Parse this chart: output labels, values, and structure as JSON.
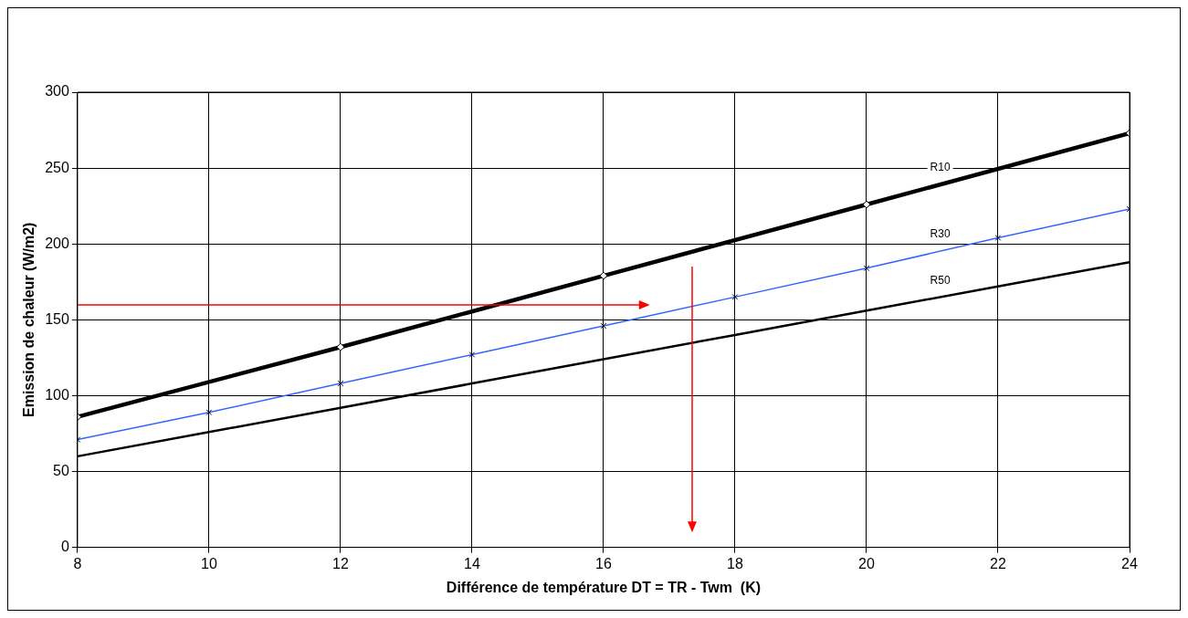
{
  "chart_data": {
    "type": "line",
    "xlabel": "Différence de température DT = TR - Twm  (K)",
    "ylabel": "Emission de chaleur (W/m2)",
    "xlim": [
      8,
      24
    ],
    "xticks": [
      8,
      10,
      12,
      14,
      16,
      18,
      20,
      22,
      24
    ],
    "ylim": [
      0,
      300
    ],
    "yticks": [
      0,
      50,
      100,
      150,
      200,
      250,
      300
    ],
    "grid": true,
    "legend": false,
    "series": [
      {
        "name": "R10",
        "color": "#000000",
        "marker": "diamond",
        "x": [
          8,
          12,
          16,
          20,
          24
        ],
        "values": [
          86,
          132,
          179,
          226,
          273
        ]
      },
      {
        "name": "R30",
        "color": "#3366ff",
        "marker": "cross",
        "x": [
          8,
          10,
          12,
          14,
          16,
          18,
          20,
          22,
          24
        ],
        "values": [
          71,
          89,
          108,
          127,
          146,
          165,
          184,
          204,
          223
        ]
      },
      {
        "name": "R50",
        "color": "#000000",
        "marker": "none",
        "x": [
          8,
          10,
          12,
          14,
          16,
          18,
          20,
          22,
          24
        ],
        "values": [
          60,
          76,
          92,
          108,
          124,
          140,
          156,
          172,
          188
        ]
      }
    ]
  }
}
